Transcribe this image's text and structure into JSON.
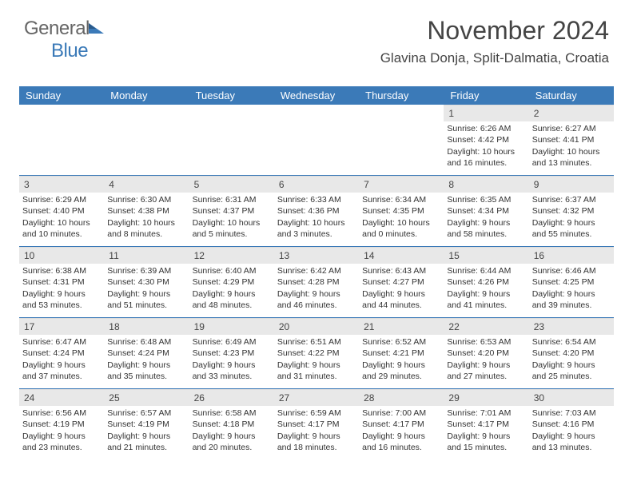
{
  "logo": {
    "text1": "General",
    "text2": "Blue"
  },
  "header": {
    "title": "November 2024",
    "subtitle": "Glavina Donja, Split-Dalmatia, Croatia"
  },
  "days": [
    "Sunday",
    "Monday",
    "Tuesday",
    "Wednesday",
    "Thursday",
    "Friday",
    "Saturday"
  ],
  "colors": {
    "accent": "#3b7ab8",
    "daybg": "#e8e8e8",
    "text": "#333"
  },
  "weeks": [
    [
      {
        "n": "",
        "sr": "",
        "ss": "",
        "dl": ""
      },
      {
        "n": "",
        "sr": "",
        "ss": "",
        "dl": ""
      },
      {
        "n": "",
        "sr": "",
        "ss": "",
        "dl": ""
      },
      {
        "n": "",
        "sr": "",
        "ss": "",
        "dl": ""
      },
      {
        "n": "",
        "sr": "",
        "ss": "",
        "dl": ""
      },
      {
        "n": "1",
        "sr": "Sunrise: 6:26 AM",
        "ss": "Sunset: 4:42 PM",
        "dl": "Daylight: 10 hours and 16 minutes."
      },
      {
        "n": "2",
        "sr": "Sunrise: 6:27 AM",
        "ss": "Sunset: 4:41 PM",
        "dl": "Daylight: 10 hours and 13 minutes."
      }
    ],
    [
      {
        "n": "3",
        "sr": "Sunrise: 6:29 AM",
        "ss": "Sunset: 4:40 PM",
        "dl": "Daylight: 10 hours and 10 minutes."
      },
      {
        "n": "4",
        "sr": "Sunrise: 6:30 AM",
        "ss": "Sunset: 4:38 PM",
        "dl": "Daylight: 10 hours and 8 minutes."
      },
      {
        "n": "5",
        "sr": "Sunrise: 6:31 AM",
        "ss": "Sunset: 4:37 PM",
        "dl": "Daylight: 10 hours and 5 minutes."
      },
      {
        "n": "6",
        "sr": "Sunrise: 6:33 AM",
        "ss": "Sunset: 4:36 PM",
        "dl": "Daylight: 10 hours and 3 minutes."
      },
      {
        "n": "7",
        "sr": "Sunrise: 6:34 AM",
        "ss": "Sunset: 4:35 PM",
        "dl": "Daylight: 10 hours and 0 minutes."
      },
      {
        "n": "8",
        "sr": "Sunrise: 6:35 AM",
        "ss": "Sunset: 4:34 PM",
        "dl": "Daylight: 9 hours and 58 minutes."
      },
      {
        "n": "9",
        "sr": "Sunrise: 6:37 AM",
        "ss": "Sunset: 4:32 PM",
        "dl": "Daylight: 9 hours and 55 minutes."
      }
    ],
    [
      {
        "n": "10",
        "sr": "Sunrise: 6:38 AM",
        "ss": "Sunset: 4:31 PM",
        "dl": "Daylight: 9 hours and 53 minutes."
      },
      {
        "n": "11",
        "sr": "Sunrise: 6:39 AM",
        "ss": "Sunset: 4:30 PM",
        "dl": "Daylight: 9 hours and 51 minutes."
      },
      {
        "n": "12",
        "sr": "Sunrise: 6:40 AM",
        "ss": "Sunset: 4:29 PM",
        "dl": "Daylight: 9 hours and 48 minutes."
      },
      {
        "n": "13",
        "sr": "Sunrise: 6:42 AM",
        "ss": "Sunset: 4:28 PM",
        "dl": "Daylight: 9 hours and 46 minutes."
      },
      {
        "n": "14",
        "sr": "Sunrise: 6:43 AM",
        "ss": "Sunset: 4:27 PM",
        "dl": "Daylight: 9 hours and 44 minutes."
      },
      {
        "n": "15",
        "sr": "Sunrise: 6:44 AM",
        "ss": "Sunset: 4:26 PM",
        "dl": "Daylight: 9 hours and 41 minutes."
      },
      {
        "n": "16",
        "sr": "Sunrise: 6:46 AM",
        "ss": "Sunset: 4:25 PM",
        "dl": "Daylight: 9 hours and 39 minutes."
      }
    ],
    [
      {
        "n": "17",
        "sr": "Sunrise: 6:47 AM",
        "ss": "Sunset: 4:24 PM",
        "dl": "Daylight: 9 hours and 37 minutes."
      },
      {
        "n": "18",
        "sr": "Sunrise: 6:48 AM",
        "ss": "Sunset: 4:24 PM",
        "dl": "Daylight: 9 hours and 35 minutes."
      },
      {
        "n": "19",
        "sr": "Sunrise: 6:49 AM",
        "ss": "Sunset: 4:23 PM",
        "dl": "Daylight: 9 hours and 33 minutes."
      },
      {
        "n": "20",
        "sr": "Sunrise: 6:51 AM",
        "ss": "Sunset: 4:22 PM",
        "dl": "Daylight: 9 hours and 31 minutes."
      },
      {
        "n": "21",
        "sr": "Sunrise: 6:52 AM",
        "ss": "Sunset: 4:21 PM",
        "dl": "Daylight: 9 hours and 29 minutes."
      },
      {
        "n": "22",
        "sr": "Sunrise: 6:53 AM",
        "ss": "Sunset: 4:20 PM",
        "dl": "Daylight: 9 hours and 27 minutes."
      },
      {
        "n": "23",
        "sr": "Sunrise: 6:54 AM",
        "ss": "Sunset: 4:20 PM",
        "dl": "Daylight: 9 hours and 25 minutes."
      }
    ],
    [
      {
        "n": "24",
        "sr": "Sunrise: 6:56 AM",
        "ss": "Sunset: 4:19 PM",
        "dl": "Daylight: 9 hours and 23 minutes."
      },
      {
        "n": "25",
        "sr": "Sunrise: 6:57 AM",
        "ss": "Sunset: 4:19 PM",
        "dl": "Daylight: 9 hours and 21 minutes."
      },
      {
        "n": "26",
        "sr": "Sunrise: 6:58 AM",
        "ss": "Sunset: 4:18 PM",
        "dl": "Daylight: 9 hours and 20 minutes."
      },
      {
        "n": "27",
        "sr": "Sunrise: 6:59 AM",
        "ss": "Sunset: 4:17 PM",
        "dl": "Daylight: 9 hours and 18 minutes."
      },
      {
        "n": "28",
        "sr": "Sunrise: 7:00 AM",
        "ss": "Sunset: 4:17 PM",
        "dl": "Daylight: 9 hours and 16 minutes."
      },
      {
        "n": "29",
        "sr": "Sunrise: 7:01 AM",
        "ss": "Sunset: 4:17 PM",
        "dl": "Daylight: 9 hours and 15 minutes."
      },
      {
        "n": "30",
        "sr": "Sunrise: 7:03 AM",
        "ss": "Sunset: 4:16 PM",
        "dl": "Daylight: 9 hours and 13 minutes."
      }
    ]
  ]
}
